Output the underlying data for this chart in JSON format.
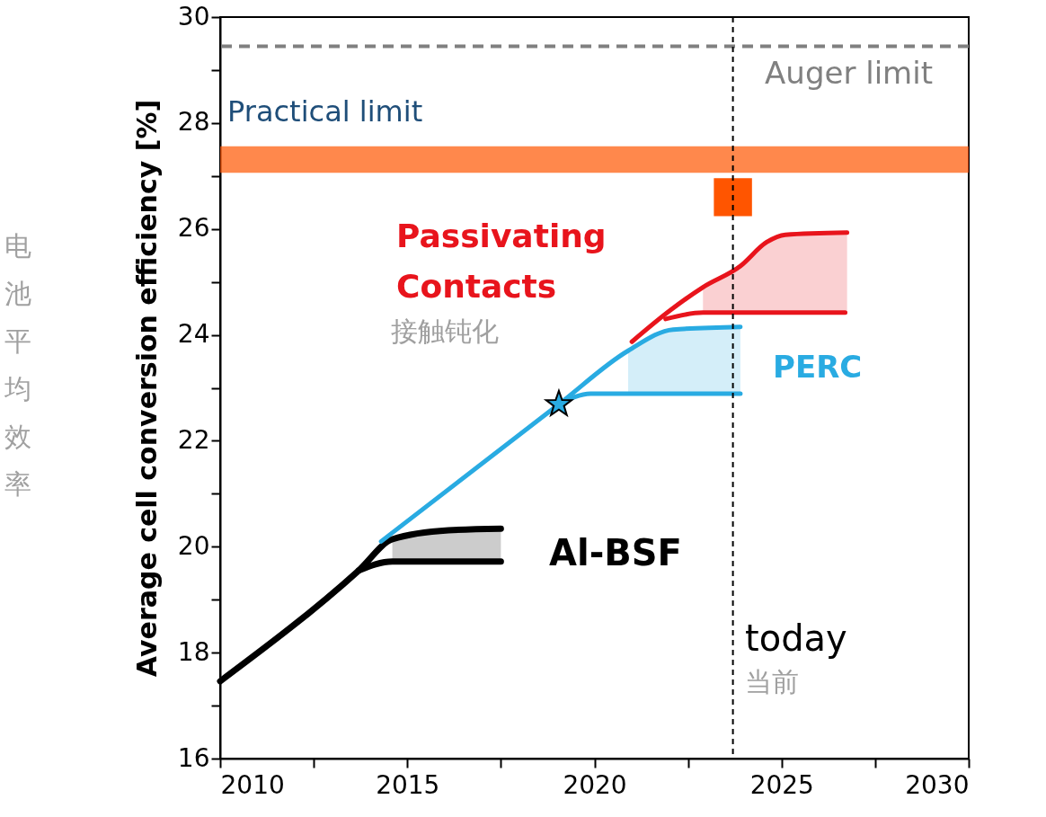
{
  "chart_data": {
    "type": "line",
    "ylabel": "Average cell conversion efficiency [%]",
    "xlim": [
      2010,
      2030
    ],
    "ylim": [
      16,
      30
    ],
    "xticks": [
      2010,
      {
        "value": 2012.5,
        "label": null
      },
      2015,
      {
        "value": 2017.5,
        "label": null
      },
      2020,
      {
        "value": 2022.5,
        "label": null
      },
      2025,
      {
        "value": 2027.5,
        "label": null
      },
      2030
    ],
    "yticks": [
      16,
      {
        "value": 17,
        "label": null
      },
      18,
      {
        "value": 19,
        "label": null
      },
      20,
      {
        "value": 21,
        "label": null
      },
      22,
      {
        "value": 23,
        "label": null
      },
      24,
      {
        "value": 25,
        "label": null
      },
      26,
      {
        "value": 27,
        "label": null
      },
      28,
      {
        "value": 29,
        "label": null
      },
      30
    ],
    "grid": false,
    "marker": "none",
    "line_style": "solid",
    "series": [
      {
        "name": "Al-BSF",
        "color": "#000000",
        "x": [
          2010,
          2013.7,
          2014.6,
          2016.1,
          2017.5
        ],
        "values": [
          17.46,
          19.55,
          20.14,
          20.31,
          20.34
        ],
        "lower": [
          null,
          null,
          19.72,
          19.72,
          19.72
        ],
        "upper": [
          null,
          null,
          20.14,
          20.31,
          20.34
        ]
      },
      {
        "color": "#000000",
        "x": [
          2013.7,
          2014.6,
          2017.5
        ],
        "values": [
          19.55,
          19.72,
          19.72
        ]
      },
      {
        "name": "PERC",
        "color": "#29abe2",
        "x": [
          2014.3,
          2019.05,
          2020.9,
          2022.1,
          2023.9
        ],
        "values": [
          20.1,
          22.69,
          23.7,
          24.1,
          24.15
        ],
        "lower": [
          null,
          null,
          22.89,
          22.89,
          22.89
        ],
        "upper": [
          null,
          null,
          23.7,
          24.1,
          24.15
        ]
      },
      {
        "color": "#29abe2",
        "x": [
          2019.05,
          2019.9,
          2023.9
        ],
        "values": [
          22.69,
          22.89,
          22.89
        ]
      },
      {
        "name": "Passivating Contacts",
        "color": "#e8141c",
        "x": [
          2021.0,
          2022.0,
          2022.9,
          2023.9,
          2024.6,
          2025.1,
          2026.75
        ],
        "values": [
          23.87,
          24.45,
          24.9,
          25.3,
          25.75,
          25.89,
          25.93
        ],
        "lower": [
          null,
          null,
          24.42,
          24.42,
          24.42,
          24.42,
          24.42
        ],
        "upper": [
          null,
          null,
          24.9,
          25.3,
          25.75,
          25.89,
          25.93
        ]
      },
      {
        "color": "#e8141c",
        "x": [
          2021.9,
          2022.9,
          2026.7
        ],
        "values": [
          24.3,
          24.42,
          24.42
        ]
      },
      {
        "type": "scatter",
        "marker": "star",
        "color": "#29abe2",
        "x": [
          2019.05
        ],
        "values": [
          22.69
        ]
      },
      {
        "type": "scatter",
        "marker": "square",
        "color": "#ff5500",
        "x": [
          2023.7
        ],
        "values": [
          26.6
        ]
      }
    ],
    "ref_lines": [
      {
        "axis": "y",
        "value": 29.45,
        "label": "Auger limit",
        "color": "#808080",
        "line_style": "dashed"
      },
      {
        "axis": "x",
        "value": 2023.7,
        "label": "today",
        "color": "#000000",
        "line_style": "dashed"
      }
    ],
    "bands": [
      {
        "axis": "y",
        "from": 27.06,
        "to": 27.56,
        "label": "Practical limit",
        "color": "#ff5500"
      }
    ],
    "annotations": [
      "接触钝化",
      "当前",
      "电池平均效率"
    ]
  }
}
